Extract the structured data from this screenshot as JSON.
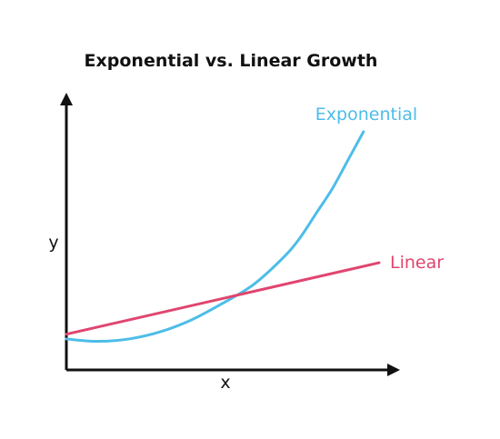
{
  "chart_data": {
    "type": "line",
    "title": "Exponential vs. Linear Growth",
    "xlabel": "x",
    "ylabel": "y",
    "xlim": [
      0,
      10
    ],
    "ylim": [
      0,
      10
    ],
    "grid": false,
    "ticks": false,
    "legend": "inline labels near line ends",
    "series": [
      {
        "name": "Exponential",
        "color": "#4dbde8",
        "x": [
          0,
          1,
          2,
          3,
          4,
          5,
          6,
          7,
          7.5,
          8,
          8.5,
          9,
          9.5
        ],
        "y": [
          1.3,
          1.2,
          1.3,
          1.6,
          2.1,
          2.8,
          3.6,
          4.8,
          5.6,
          6.6,
          7.6,
          8.8,
          10.0
        ]
      },
      {
        "name": "Linear",
        "color": "#e0456f",
        "x": [
          0,
          10
        ],
        "y": [
          1.5,
          4.5
        ]
      }
    ]
  }
}
